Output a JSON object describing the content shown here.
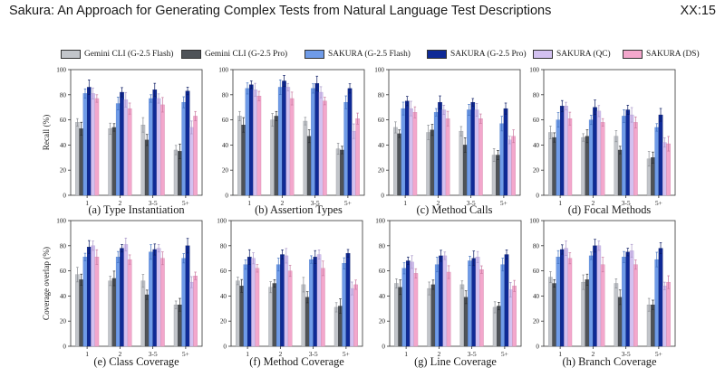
{
  "header": {
    "running_title": "Sakura: An Approach for Generating Complex Tests from Natural Language Test Descriptions",
    "page_number": "XX:15"
  },
  "legend": [
    {
      "label": "Gemini CLI (G-2.5 Flash)",
      "color": "#c2c5ca"
    },
    {
      "label": "Gemini CLI (G-2.5 Pro)",
      "color": "#4f5358"
    },
    {
      "label": "SAKURA (G-2.5 Flash)",
      "color": "#6f9be8"
    },
    {
      "label": "SAKURA (G-2.5 Pro)",
      "color": "#0f2a96"
    },
    {
      "label": "SAKURA (QC)",
      "color": "#d3c1f0"
    },
    {
      "label": "SAKURA (DS)",
      "color": "#f3a7cc"
    }
  ],
  "row_ylabels": [
    "Recall (%)",
    "Coverage overlap (%)"
  ],
  "chart_data": [
    {
      "type": "bar",
      "caption": "(a) Type Instantiation",
      "ylabel": "Recall (%)",
      "ylim": [
        0,
        100
      ],
      "yticks": [
        0,
        20,
        40,
        60,
        80,
        100
      ],
      "categories": [
        "1",
        "2",
        "3-5",
        "5+"
      ],
      "series": [
        {
          "name": "Gemini CLI (G-2.5 Flash)",
          "values": [
            58,
            53,
            56,
            36
          ]
        },
        {
          "name": "Gemini CLI (G-2.5 Pro)",
          "values": [
            53,
            54,
            44,
            35
          ]
        },
        {
          "name": "SAKURA (G-2.5 Flash)",
          "values": [
            81,
            73,
            77,
            74
          ]
        },
        {
          "name": "SAKURA (G-2.5 Pro)",
          "values": [
            86,
            82,
            84,
            83
          ]
        },
        {
          "name": "SAKURA (QC)",
          "values": [
            81,
            76,
            77,
            54
          ]
        },
        {
          "name": "SAKURA (DS)",
          "values": [
            77,
            69,
            72,
            63
          ]
        }
      ]
    },
    {
      "type": "bar",
      "caption": "(b) Assertion Types",
      "ylabel": "",
      "ylim": [
        0,
        100
      ],
      "yticks": [
        0,
        20,
        40,
        60,
        80,
        100
      ],
      "categories": [
        "1",
        "2",
        "3-5",
        "5+"
      ],
      "series": [
        {
          "name": "Gemini CLI (G-2.5 Flash)",
          "values": [
            63,
            60,
            59,
            37
          ]
        },
        {
          "name": "Gemini CLI (G-2.5 Pro)",
          "values": [
            56,
            63,
            47,
            36
          ]
        },
        {
          "name": "SAKURA (G-2.5 Flash)",
          "values": [
            85,
            86,
            85,
            74
          ]
        },
        {
          "name": "SAKURA (G-2.5 Pro)",
          "values": [
            88,
            91,
            89,
            85
          ]
        },
        {
          "name": "SAKURA (QC)",
          "values": [
            84,
            86,
            82,
            51
          ]
        },
        {
          "name": "SAKURA (DS)",
          "values": [
            79,
            77,
            75,
            61
          ]
        }
      ]
    },
    {
      "type": "bar",
      "caption": "(c) Method Calls",
      "ylabel": "",
      "ylim": [
        0,
        100
      ],
      "yticks": [
        0,
        20,
        40,
        60,
        80,
        100
      ],
      "categories": [
        "1",
        "2",
        "3-5",
        "5+"
      ],
      "series": [
        {
          "name": "Gemini CLI (G-2.5 Flash)",
          "values": [
            54,
            50,
            51,
            32
          ]
        },
        {
          "name": "Gemini CLI (G-2.5 Pro)",
          "values": [
            49,
            52,
            40,
            32
          ]
        },
        {
          "name": "SAKURA (G-2.5 Flash)",
          "values": [
            69,
            66,
            68,
            57
          ]
        },
        {
          "name": "SAKURA (G-2.5 Pro)",
          "values": [
            75,
            74,
            74,
            69
          ]
        },
        {
          "name": "SAKURA (QC)",
          "values": [
            69,
            68,
            68,
            44
          ]
        },
        {
          "name": "SAKURA (DS)",
          "values": [
            66,
            61,
            61,
            47
          ]
        }
      ]
    },
    {
      "type": "bar",
      "caption": "(d) Focal Methods",
      "ylabel": "",
      "ylim": [
        0,
        100
      ],
      "yticks": [
        0,
        20,
        40,
        60,
        80,
        100
      ],
      "categories": [
        "1",
        "2",
        "3-5",
        "5+"
      ],
      "series": [
        {
          "name": "Gemini CLI (G-2.5 Flash)",
          "values": [
            50,
            46,
            47,
            29
          ]
        },
        {
          "name": "Gemini CLI (G-2.5 Pro)",
          "values": [
            46,
            47,
            36,
            30
          ]
        },
        {
          "name": "SAKURA (G-2.5 Flash)",
          "values": [
            60,
            60,
            63,
            54
          ]
        },
        {
          "name": "SAKURA (G-2.5 Pro)",
          "values": [
            71,
            70,
            68,
            64
          ]
        },
        {
          "name": "SAKURA (QC)",
          "values": [
            71,
            67,
            64,
            42
          ]
        },
        {
          "name": "SAKURA (DS)",
          "values": [
            61,
            58,
            58,
            41
          ]
        }
      ]
    },
    {
      "type": "bar",
      "caption": "(e) Class Coverage",
      "ylabel": "Coverage overlap (%)",
      "ylim": [
        0,
        100
      ],
      "yticks": [
        0,
        20,
        40,
        60,
        80,
        100
      ],
      "categories": [
        "1",
        "2",
        "3-5",
        "5+"
      ],
      "series": [
        {
          "name": "Gemini CLI (G-2.5 Flash)",
          "values": [
            57,
            52,
            52,
            33
          ]
        },
        {
          "name": "Gemini CLI (G-2.5 Pro)",
          "values": [
            53,
            54,
            41,
            33
          ]
        },
        {
          "name": "SAKURA (G-2.5 Flash)",
          "values": [
            71,
            71,
            75,
            70
          ]
        },
        {
          "name": "SAKURA (G-2.5 Pro)",
          "values": [
            79,
            78,
            77,
            80
          ]
        },
        {
          "name": "SAKURA (QC)",
          "values": [
            80,
            81,
            78,
            51
          ]
        },
        {
          "name": "SAKURA (DS)",
          "values": [
            71,
            69,
            70,
            56
          ]
        }
      ]
    },
    {
      "type": "bar",
      "caption": "(f) Method Coverage",
      "ylabel": "",
      "ylim": [
        0,
        100
      ],
      "yticks": [
        0,
        20,
        40,
        60,
        80,
        100
      ],
      "categories": [
        "1",
        "2",
        "3-5",
        "5+"
      ],
      "series": [
        {
          "name": "Gemini CLI (G-2.5 Flash)",
          "values": [
            52,
            47,
            49,
            31
          ]
        },
        {
          "name": "Gemini CLI (G-2.5 Pro)",
          "values": [
            48,
            50,
            39,
            32
          ]
        },
        {
          "name": "SAKURA (G-2.5 Flash)",
          "values": [
            65,
            65,
            69,
            66
          ]
        },
        {
          "name": "SAKURA (G-2.5 Pro)",
          "values": [
            71,
            73,
            71,
            74
          ]
        },
        {
          "name": "SAKURA (QC)",
          "values": [
            70,
            72,
            73,
            46
          ]
        },
        {
          "name": "SAKURA (DS)",
          "values": [
            62,
            60,
            62,
            49
          ]
        }
      ]
    },
    {
      "type": "bar",
      "caption": "(g) Line Coverage",
      "ylabel": "",
      "ylim": [
        0,
        100
      ],
      "yticks": [
        0,
        20,
        40,
        60,
        80,
        100
      ],
      "categories": [
        "1",
        "2",
        "3-5",
        "5+"
      ],
      "series": [
        {
          "name": "Gemini CLI (G-2.5 Flash)",
          "values": [
            50,
            46,
            49,
            31
          ]
        },
        {
          "name": "Gemini CLI (G-2.5 Pro)",
          "values": [
            47,
            49,
            39,
            32
          ]
        },
        {
          "name": "SAKURA (G-2.5 Flash)",
          "values": [
            62,
            65,
            68,
            65
          ]
        },
        {
          "name": "SAKURA (G-2.5 Pro)",
          "values": [
            68,
            72,
            70,
            73
          ]
        },
        {
          "name": "SAKURA (QC)",
          "values": [
            67,
            72,
            71,
            45
          ]
        },
        {
          "name": "SAKURA (DS)",
          "values": [
            58,
            59,
            61,
            48
          ]
        }
      ]
    },
    {
      "type": "bar",
      "caption": "(h) Branch Coverage",
      "ylabel": "",
      "ylim": [
        0,
        100
      ],
      "yticks": [
        0,
        20,
        40,
        60,
        80,
        100
      ],
      "categories": [
        "1",
        "2",
        "3-5",
        "5+"
      ],
      "series": [
        {
          "name": "Gemini CLI (G-2.5 Flash)",
          "values": [
            55,
            51,
            50,
            33
          ]
        },
        {
          "name": "Gemini CLI (G-2.5 Pro)",
          "values": [
            50,
            53,
            39,
            33
          ]
        },
        {
          "name": "SAKURA (G-2.5 Flash)",
          "values": [
            71,
            72,
            71,
            69
          ]
        },
        {
          "name": "SAKURA (G-2.5 Pro)",
          "values": [
            77,
            80,
            75,
            78
          ]
        },
        {
          "name": "SAKURA (QC)",
          "values": [
            78,
            80,
            76,
            48
          ]
        },
        {
          "name": "SAKURA (DS)",
          "values": [
            70,
            65,
            65,
            51
          ]
        }
      ]
    }
  ]
}
